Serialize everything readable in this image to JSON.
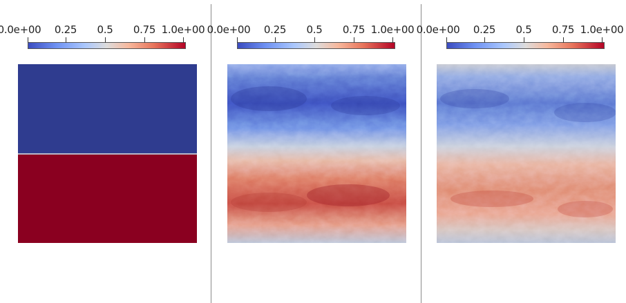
{
  "panels": [
    {
      "colorbar": {
        "ticks": [
          "0.0e+00",
          "0.25",
          "0.5",
          "0.75",
          "1.0e+00"
        ],
        "colormap": "coolwarm"
      },
      "field": {
        "kind": "sharp-interface",
        "top_value": 0.0,
        "bottom_value": 1.0,
        "interface_level": 0.5
      }
    },
    {
      "colorbar": {
        "ticks": [
          "0.0e+00",
          "0.25",
          "0.5",
          "0.75",
          "1.0e+00"
        ],
        "colormap": "coolwarm"
      },
      "field": {
        "kind": "noisy-bands",
        "contrast": 0.42
      }
    },
    {
      "colorbar": {
        "ticks": [
          "0.0e+00",
          "0.25",
          "0.5",
          "0.75",
          "1.0e+00"
        ],
        "colormap": "coolwarm"
      },
      "field": {
        "kind": "noisy-bands",
        "contrast": 0.3
      }
    }
  ],
  "colors": {
    "blue_dark": "#2f3c8f",
    "red_dark": "#8a0020",
    "background": "#ffffff",
    "divider": "#8a8a8a"
  }
}
